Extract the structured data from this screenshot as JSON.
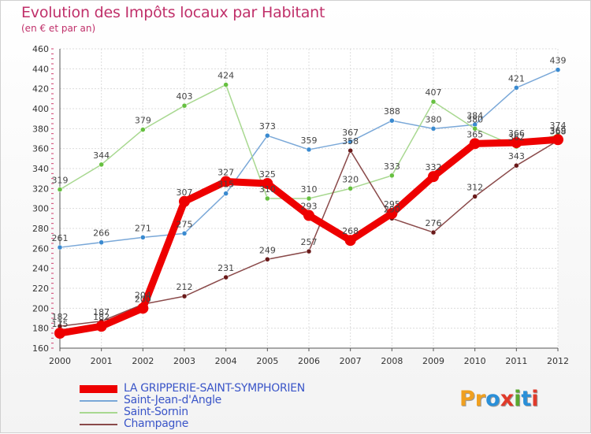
{
  "title": "Evolution des Impôts locaux par Habitant",
  "subtitle": "(en € et par an)",
  "logo": {
    "text": "Proxiti",
    "letters": [
      {
        "ch": "P",
        "color": "#f0a020"
      },
      {
        "ch": "r",
        "color": "#f0a020"
      },
      {
        "ch": "o",
        "color": "#2a8fd8"
      },
      {
        "ch": "x",
        "color": "#e03a2a"
      },
      {
        "ch": "i",
        "color": "#5aa830"
      },
      {
        "ch": "t",
        "color": "#2a8fd8"
      },
      {
        "ch": "i",
        "color": "#e03a2a"
      }
    ]
  },
  "chart_data": {
    "type": "line",
    "title": "Evolution des Impôts locaux par Habitant",
    "subtitle": "(en € et par an)",
    "xlabel": "",
    "ylabel": "",
    "ylim": [
      160,
      460
    ],
    "yticks": [
      "160",
      "180",
      "200",
      "220",
      "240",
      "260",
      "280",
      "300",
      "320",
      "340",
      "360",
      "380",
      "400",
      "420",
      "440",
      "460"
    ],
    "categories": [
      "2000",
      "2001",
      "2002",
      "2003",
      "2004",
      "2005",
      "2006",
      "2007",
      "2008",
      "2009",
      "2010",
      "2011",
      "2012"
    ],
    "grid": true,
    "legend_position": "bottom-left",
    "series": [
      {
        "name": "LA GRIPPERIE-SAINT-SYMPHORIEN",
        "color": "#ee0000",
        "marker": "#ee0000",
        "thick": true,
        "values": [
          175,
          182,
          200,
          307,
          327,
          325,
          293,
          268,
          295,
          332,
          365,
          366,
          369
        ],
        "labels": [
          "175",
          "182",
          "200",
          "307",
          "327",
          "325",
          "293",
          "268",
          "295",
          "332",
          "365",
          "366",
          "369"
        ]
      },
      {
        "name": "Saint-Jean-d'Angle",
        "color": "#7aa8d8",
        "marker": "#3a8ad0",
        "thick": false,
        "values": [
          261,
          266,
          271,
          275,
          315,
          373,
          359,
          367,
          388,
          380,
          384,
          421,
          439
        ],
        "labels": [
          "261",
          "266",
          "271",
          "275",
          "315",
          "373",
          "359",
          "367",
          "388",
          "380",
          "384",
          "421",
          "439"
        ]
      },
      {
        "name": "Saint-Sornin",
        "color": "#a8d890",
        "marker": "#66c040",
        "thick": false,
        "values": [
          319,
          344,
          379,
          403,
          424,
          310,
          310,
          320,
          333,
          407,
          380,
          362,
          374
        ],
        "labels": [
          "319",
          "344",
          "379",
          "403",
          "424",
          "310",
          "310",
          "320",
          "333",
          "407",
          "380",
          "362",
          "374"
        ]
      },
      {
        "name": "Champagne",
        "color": "#8a4a4a",
        "marker": "#6a1a1a",
        "thick": false,
        "values": [
          182,
          187,
          204,
          212,
          231,
          249,
          257,
          358,
          290,
          276,
          312,
          343,
          368
        ],
        "labels": [
          "182",
          "187",
          "204",
          "212",
          "231",
          "249",
          "257",
          "358",
          "290",
          "276",
          "312",
          "343",
          "368"
        ]
      }
    ]
  }
}
